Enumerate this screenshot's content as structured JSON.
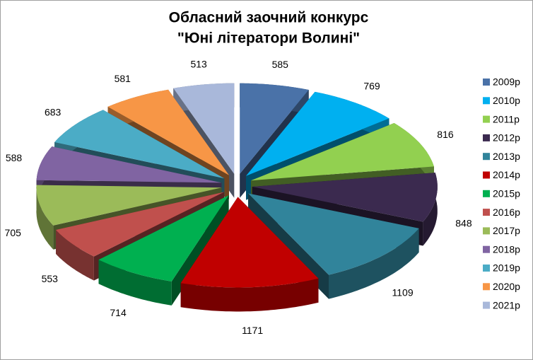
{
  "chart_data": {
    "type": "pie3d",
    "title": [
      "Обласний заочний конкурс",
      "\"Юні літератори Волині\""
    ],
    "categories": [
      "2009р",
      "2010р",
      "2011р",
      "2012р",
      "2013р",
      "2014р",
      "2015р",
      "2016р",
      "2017р",
      "2018р",
      "2019р",
      "2020р",
      "2021р"
    ],
    "values": [
      585,
      769,
      816,
      848,
      1109,
      1171,
      714,
      553,
      705,
      588,
      683,
      581,
      513
    ],
    "colors": [
      "#4a72a8",
      "#00b0f0",
      "#92d050",
      "#3b2a4f",
      "#31849b",
      "#c00000",
      "#00b050",
      "#c0504d",
      "#9bbb59",
      "#8064a2",
      "#4bacc6",
      "#f79646",
      "#a9b8da"
    ],
    "legend": "right"
  }
}
